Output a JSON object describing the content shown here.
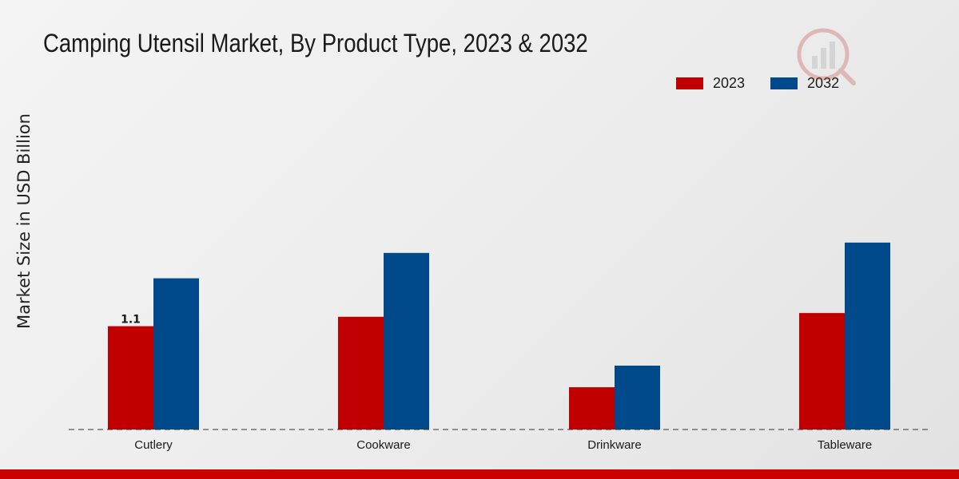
{
  "title": "Camping Utensil Market, By Product Type, 2023 & 2032",
  "colors": {
    "series_2023": "#c00000",
    "series_2032": "#004a8c",
    "bottom_bar": "#cc0000",
    "axis_text": "#1a1a1a"
  },
  "chart_data": {
    "type": "bar",
    "title": "Camping Utensil Market, By Product Type, 2023 & 2032",
    "xlabel": "",
    "ylabel": "Market Size in USD Billion",
    "categories": [
      "Cutlery",
      "Cookware",
      "Drinkware",
      "Tableware"
    ],
    "series": [
      {
        "name": "2023",
        "values": [
          1.1,
          1.2,
          0.45,
          1.24
        ]
      },
      {
        "name": "2032",
        "values": [
          1.61,
          1.88,
          0.68,
          1.99
        ]
      }
    ],
    "data_labels": [
      {
        "series": 0,
        "category": 0,
        "text": "1.1"
      }
    ],
    "ylim": [
      0,
      3.4
    ],
    "grid": false,
    "baseline": "dashed",
    "legend_position": "top-right"
  },
  "icons": {
    "watermark": "logo-watermark-icon"
  }
}
